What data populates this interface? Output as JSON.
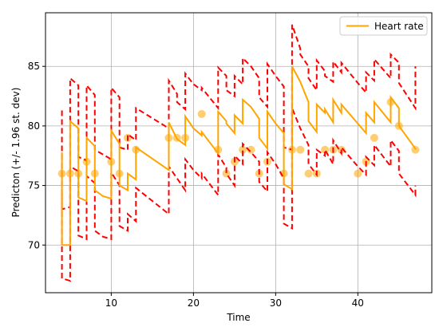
{
  "chart_data": {
    "type": "line",
    "xlabel": "Time",
    "ylabel": "Predicton (+/- 1.96 st. dev)",
    "xlim": [
      2,
      49
    ],
    "ylim": [
      66,
      89.5
    ],
    "xticks": [
      10,
      20,
      30,
      40
    ],
    "yticks": [
      70,
      75,
      80,
      85
    ],
    "grid": true,
    "legend": {
      "placement": "top-right",
      "entries": [
        "Heart rate"
      ]
    },
    "colors": {
      "prediction": "#ffa500",
      "band": "#ff0000",
      "observed": "#ffa500"
    },
    "series": [
      {
        "name": "Heart rate",
        "kind": "prediction",
        "points": [
          [
            4,
            77.8
          ],
          [
            4,
            70.0
          ],
          [
            5,
            70.0
          ],
          [
            5,
            80.4
          ],
          [
            6,
            79.8
          ],
          [
            6,
            74.0
          ],
          [
            7,
            73.7
          ],
          [
            7,
            79.0
          ],
          [
            8,
            78.3
          ],
          [
            8,
            74.6
          ],
          [
            9,
            74.1
          ],
          [
            10,
            73.9
          ],
          [
            10,
            79.6
          ],
          [
            11,
            78.5
          ],
          [
            11,
            75.0
          ],
          [
            12,
            74.6
          ],
          [
            12,
            76.0
          ],
          [
            13,
            75.5
          ],
          [
            13,
            78.2
          ],
          [
            17,
            76.3
          ],
          [
            17,
            80.3
          ],
          [
            18,
            78.9
          ],
          [
            19,
            78.4
          ],
          [
            19,
            80.8
          ],
          [
            20,
            79.8
          ],
          [
            21,
            79.2
          ],
          [
            21,
            79.5
          ],
          [
            23,
            77.7
          ],
          [
            23,
            81.2
          ],
          [
            24,
            80.4
          ],
          [
            24,
            80.2
          ],
          [
            25,
            79.4
          ],
          [
            25,
            80.9
          ],
          [
            26,
            80.2
          ],
          [
            26,
            82.2
          ],
          [
            27,
            81.6
          ],
          [
            28,
            80.6
          ],
          [
            28,
            79.0
          ],
          [
            29,
            78.1
          ],
          [
            29,
            81.2
          ],
          [
            30,
            80.2
          ],
          [
            31,
            79.4
          ],
          [
            31,
            75.1
          ],
          [
            32,
            74.7
          ],
          [
            32,
            85.0
          ],
          [
            33,
            83.7
          ],
          [
            34,
            82.0
          ],
          [
            34,
            80.4
          ],
          [
            35,
            79.5
          ],
          [
            35,
            81.8
          ],
          [
            36,
            81.1
          ],
          [
            36,
            81.4
          ],
          [
            37,
            80.3
          ],
          [
            37,
            82.2
          ],
          [
            38,
            81.1
          ],
          [
            38,
            81.8
          ],
          [
            40,
            80.2
          ],
          [
            41,
            79.4
          ],
          [
            41,
            81.1
          ],
          [
            42,
            80.3
          ],
          [
            42,
            82.0
          ],
          [
            44,
            80.3
          ],
          [
            44,
            82.4
          ],
          [
            45,
            81.5
          ],
          [
            45,
            80.0
          ],
          [
            47,
            78.1
          ],
          [
            47,
            78.0
          ]
        ]
      },
      {
        "kind": "upper-band",
        "points": [
          [
            4,
            81.3
          ],
          [
            4,
            73.0
          ],
          [
            5,
            73.2
          ],
          [
            5,
            84.0
          ],
          [
            6,
            83.4
          ],
          [
            6,
            77.4
          ],
          [
            7,
            77.1
          ],
          [
            7,
            83.4
          ],
          [
            8,
            82.6
          ],
          [
            8,
            78.0
          ],
          [
            9,
            77.6
          ],
          [
            10,
            77.2
          ],
          [
            10,
            83.2
          ],
          [
            11,
            82.4
          ],
          [
            11,
            78.2
          ],
          [
            12,
            78.0
          ],
          [
            12,
            79.3
          ],
          [
            13,
            78.8
          ],
          [
            13,
            81.5
          ],
          [
            17,
            79.8
          ],
          [
            17,
            83.8
          ],
          [
            18,
            82.7
          ],
          [
            18,
            82.0
          ],
          [
            19,
            81.4
          ],
          [
            19,
            84.4
          ],
          [
            20,
            83.5
          ],
          [
            21,
            83.0
          ],
          [
            21,
            83.2
          ],
          [
            23,
            81.5
          ],
          [
            23,
            84.9
          ],
          [
            24,
            84.2
          ],
          [
            24,
            83.0
          ],
          [
            25,
            82.5
          ],
          [
            25,
            84.2
          ],
          [
            26,
            83.5
          ],
          [
            26,
            85.7
          ],
          [
            27,
            85.0
          ],
          [
            28,
            84.0
          ],
          [
            28,
            82.4
          ],
          [
            29,
            81.6
          ],
          [
            29,
            85.2
          ],
          [
            30,
            84.2
          ],
          [
            31,
            83.3
          ],
          [
            31,
            78.2
          ],
          [
            32,
            78.0
          ],
          [
            32,
            88.5
          ],
          [
            33,
            86.5
          ],
          [
            33,
            86.0
          ],
          [
            34,
            85.0
          ],
          [
            34,
            84.0
          ],
          [
            35,
            83.0
          ],
          [
            35,
            85.5
          ],
          [
            36,
            84.6
          ],
          [
            36,
            84.2
          ],
          [
            37,
            83.7
          ],
          [
            37,
            85.4
          ],
          [
            38,
            84.5
          ],
          [
            38,
            85.3
          ],
          [
            40,
            83.6
          ],
          [
            41,
            82.8
          ],
          [
            41,
            84.5
          ],
          [
            42,
            83.8
          ],
          [
            42,
            85.6
          ],
          [
            44,
            84.0
          ],
          [
            44,
            86.0
          ],
          [
            45,
            85.3
          ],
          [
            45,
            83.6
          ],
          [
            47,
            81.5
          ],
          [
            47,
            85.0
          ]
        ]
      },
      {
        "kind": "lower-band",
        "points": [
          [
            4,
            74.3
          ],
          [
            4,
            67.2
          ],
          [
            5,
            67.0
          ],
          [
            5,
            76.6
          ],
          [
            6,
            76.2
          ],
          [
            6,
            70.8
          ],
          [
            7,
            70.5
          ],
          [
            7,
            75.8
          ],
          [
            8,
            75.2
          ],
          [
            8,
            71.2
          ],
          [
            9,
            70.7
          ],
          [
            10,
            70.5
          ],
          [
            10,
            76.1
          ],
          [
            11,
            75.0
          ],
          [
            11,
            71.6
          ],
          [
            12,
            71.2
          ],
          [
            12,
            72.6
          ],
          [
            13,
            72.0
          ],
          [
            13,
            74.8
          ],
          [
            17,
            72.6
          ],
          [
            17,
            76.6
          ],
          [
            18,
            75.6
          ],
          [
            19,
            74.6
          ],
          [
            19,
            77.2
          ],
          [
            20,
            76.3
          ],
          [
            21,
            75.6
          ],
          [
            21,
            76.0
          ],
          [
            23,
            74.2
          ],
          [
            23,
            77.6
          ],
          [
            24,
            76.5
          ],
          [
            24,
            76.0
          ],
          [
            25,
            75.0
          ],
          [
            25,
            77.5
          ],
          [
            26,
            76.8
          ],
          [
            26,
            78.5
          ],
          [
            27,
            77.8
          ],
          [
            28,
            77.0
          ],
          [
            28,
            75.3
          ],
          [
            29,
            74.5
          ],
          [
            29,
            77.8
          ],
          [
            30,
            76.8
          ],
          [
            31,
            75.6
          ],
          [
            31,
            71.8
          ],
          [
            32,
            71.4
          ],
          [
            32,
            81.5
          ],
          [
            33,
            79.8
          ],
          [
            34,
            78.4
          ],
          [
            34,
            76.8
          ],
          [
            35,
            75.9
          ],
          [
            35,
            78.0
          ],
          [
            36,
            77.5
          ],
          [
            36,
            78.0
          ],
          [
            37,
            76.8
          ],
          [
            37,
            78.8
          ],
          [
            38,
            77.7
          ],
          [
            38,
            78.2
          ],
          [
            40,
            76.6
          ],
          [
            41,
            75.9
          ],
          [
            41,
            77.4
          ],
          [
            42,
            76.7
          ],
          [
            42,
            78.4
          ],
          [
            44,
            76.6
          ],
          [
            44,
            78.8
          ],
          [
            45,
            77.9
          ],
          [
            45,
            76.0
          ],
          [
            47,
            74.2
          ],
          [
            47,
            75.0
          ]
        ]
      },
      {
        "kind": "observed",
        "points": [
          [
            4,
            76.0
          ],
          [
            5,
            76.0
          ],
          [
            6,
            76.0
          ],
          [
            7,
            77.0
          ],
          [
            8,
            76.0
          ],
          [
            10,
            77.0
          ],
          [
            11,
            76.0
          ],
          [
            12,
            79.0
          ],
          [
            13,
            78.0
          ],
          [
            17,
            79.0
          ],
          [
            18,
            79.0
          ],
          [
            19,
            79.0
          ],
          [
            21,
            81.0
          ],
          [
            23,
            78.0
          ],
          [
            24,
            76.0
          ],
          [
            25,
            77.0
          ],
          [
            26,
            78.0
          ],
          [
            27,
            78.0
          ],
          [
            28,
            76.0
          ],
          [
            29,
            77.0
          ],
          [
            31,
            76.0
          ],
          [
            32,
            78.0
          ],
          [
            33,
            78.0
          ],
          [
            34,
            76.0
          ],
          [
            35,
            76.0
          ],
          [
            36,
            78.0
          ],
          [
            37,
            78.0
          ],
          [
            38,
            78.0
          ],
          [
            40,
            76.0
          ],
          [
            41,
            77.0
          ],
          [
            42,
            79.0
          ],
          [
            44,
            82.0
          ],
          [
            45,
            80.0
          ],
          [
            47,
            78.0
          ]
        ]
      }
    ]
  }
}
